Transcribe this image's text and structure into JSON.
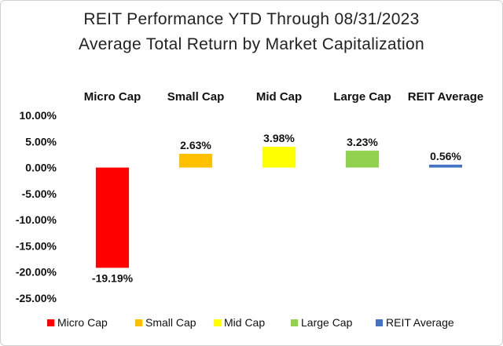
{
  "chart_data": {
    "type": "bar",
    "title": "REIT Performance YTD Through 08/31/2023",
    "subtitle": "Average Total Return by Market Capitalization",
    "categories": [
      "Micro Cap",
      "Small Cap",
      "Mid Cap",
      "Large Cap",
      "REIT Average"
    ],
    "values": [
      -19.19,
      2.63,
      3.98,
      3.23,
      0.56
    ],
    "data_labels": [
      "-19.19%",
      "2.63%",
      "3.98%",
      "3.23%",
      "0.56%"
    ],
    "colors": [
      "#ff0000",
      "#ffc000",
      "#ffff00",
      "#92d050",
      "#4472c4"
    ],
    "ylim": [
      -25,
      10
    ],
    "yticks": [
      10,
      5,
      0,
      -5,
      -10,
      -15,
      -20,
      -25
    ],
    "ytick_labels": [
      "10.00%",
      "5.00%",
      "0.00%",
      "-5.00%",
      "-10.00%",
      "-15.00%",
      "-20.00%",
      "-25.00%"
    ],
    "xlabel": "",
    "ylabel": "",
    "grid": false,
    "legend": {
      "position": "bottom",
      "entries": [
        "Micro Cap",
        "Small Cap",
        "Mid Cap",
        "Large Cap",
        "REIT Average"
      ]
    }
  }
}
